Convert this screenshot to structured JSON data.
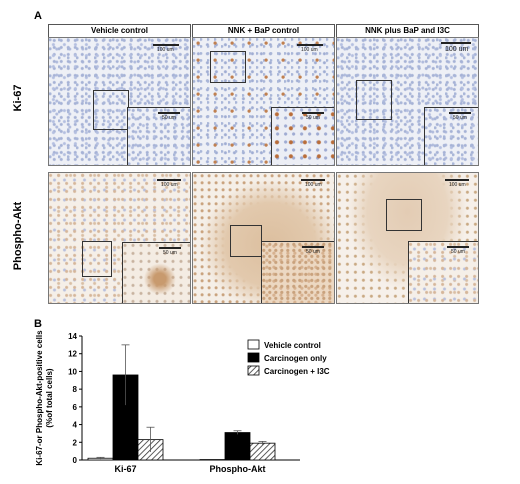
{
  "figure": {
    "panel_a_label": "A",
    "panel_b_label": "B",
    "columns": [
      "Vehicle control",
      "NNK + BaP control",
      "NNK plus BaP and I3C"
    ],
    "rows": [
      "Ki-67",
      "Phospho-Akt"
    ],
    "scale_labels": {
      "ki67": [
        "100 um",
        "100 um",
        "100 um"
      ],
      "ki67_inset": [
        "50 um",
        "50 um",
        "50 um"
      ],
      "akt": [
        "100 um",
        "100 um",
        "100 um"
      ],
      "akt_inset": [
        "50 um",
        "50 um",
        "50 um"
      ]
    }
  },
  "chart_data": {
    "type": "bar",
    "ylabel": "Ki-67 or Phospho-Akt-positive cells\n(% of total cells)",
    "ylabel_lines": [
      "Ki-67-or Phospho-Akt-positive cells",
      "(%of total cells)"
    ],
    "ylim": [
      0,
      14
    ],
    "yticks": [
      0,
      2,
      4,
      6,
      8,
      10,
      12,
      14
    ],
    "categories": [
      "Ki-67",
      "Phospho-Akt"
    ],
    "series": [
      {
        "name": "Vehicle control",
        "values": [
          0.2,
          0.05
        ],
        "errors": [
          0.1,
          0.0
        ],
        "color": "#ffffff"
      },
      {
        "name": "Carcinogen only",
        "values": [
          9.6,
          3.1
        ],
        "errors": [
          3.4,
          0.2
        ],
        "color": "#000000"
      },
      {
        "name": "Carcinogen + I3C",
        "values": [
          2.3,
          1.9
        ],
        "errors": [
          1.4,
          0.2
        ],
        "color": "hatch"
      }
    ],
    "legend_position": "top-right"
  }
}
